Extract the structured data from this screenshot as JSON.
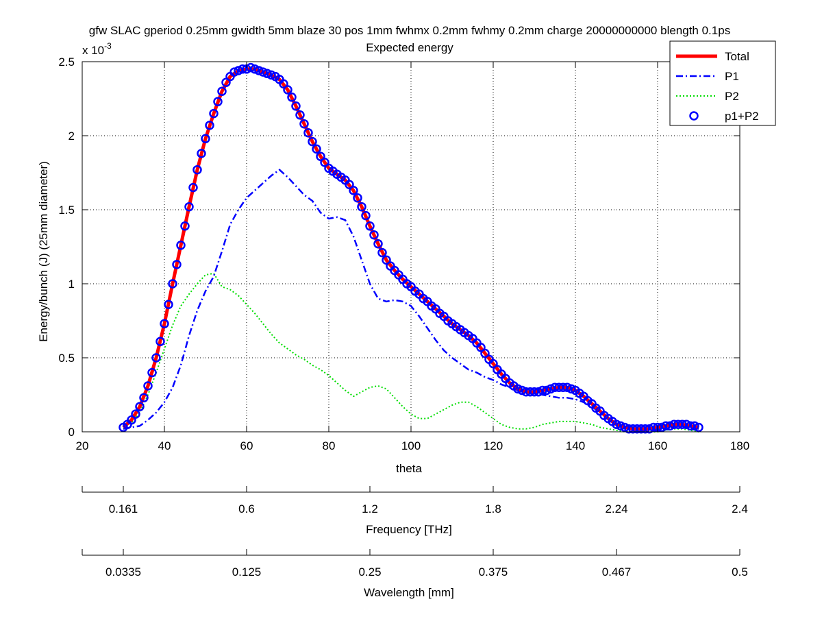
{
  "chart_data": {
    "type": "line",
    "title": "gfw SLAC gperiod 0.25mm gwidth 5mm blaze 30 pos 1mm fwhmx 0.2mm fwhmy 0.2mm charge 20000000000 blength 0.1ps",
    "subtitle": "Expected energy",
    "xlabel": "theta",
    "ylabel": "Energy/bunch (J)  (25mm diameter)",
    "y_exponent_label": "x 10",
    "y_exponent_power": "-3",
    "xlim": [
      20,
      180
    ],
    "ylim": [
      0,
      0.0025
    ],
    "x_ticks": [
      20,
      40,
      60,
      80,
      100,
      120,
      140,
      160,
      180
    ],
    "x_tick_labels": [
      "20",
      "40",
      "60",
      "80",
      "100",
      "120",
      "140",
      "160",
      "180"
    ],
    "y_ticks": [
      0,
      0.0005,
      0.001,
      0.0015,
      0.002,
      0.0025
    ],
    "y_tick_labels": [
      "0",
      "0.5",
      "1",
      "1.5",
      "2",
      "2.5"
    ],
    "grid": true,
    "legend_position": "top-right",
    "series": [
      {
        "name": "Total",
        "color": "#ff0000",
        "style": "solid-thick",
        "x": [
          30,
          32,
          34,
          36,
          38,
          40,
          42,
          44,
          46,
          48,
          50,
          52,
          54,
          56,
          58,
          60,
          62,
          64,
          66,
          68,
          70,
          72,
          74,
          76,
          78,
          80,
          82,
          84,
          86,
          88,
          90,
          92,
          94,
          96,
          98,
          100,
          102,
          104,
          106,
          108,
          110,
          112,
          114,
          116,
          118,
          120,
          122,
          124,
          126,
          128,
          130,
          132,
          134,
          136,
          138,
          140,
          142,
          144,
          146,
          148,
          150,
          152,
          154,
          156,
          158,
          160,
          162,
          164,
          166,
          168,
          170
        ],
        "y": [
          3e-05,
          8e-05,
          0.00017,
          0.00031,
          0.0005,
          0.00073,
          0.001,
          0.00126,
          0.00152,
          0.00177,
          0.00198,
          0.00215,
          0.0023,
          0.0024,
          0.00244,
          0.00245,
          0.00245,
          0.00243,
          0.00241,
          0.00238,
          0.00231,
          0.0022,
          0.00208,
          0.00196,
          0.00186,
          0.00178,
          0.00174,
          0.0017,
          0.00163,
          0.00152,
          0.00139,
          0.00127,
          0.00116,
          0.00109,
          0.00103,
          0.00098,
          0.00093,
          0.00088,
          0.00083,
          0.00078,
          0.00073,
          0.00069,
          0.00065,
          0.0006,
          0.00053,
          0.00046,
          0.00039,
          0.00033,
          0.00029,
          0.00027,
          0.00027,
          0.00028,
          0.00029,
          0.0003,
          0.0003,
          0.00028,
          0.00024,
          0.00019,
          0.00014,
          9e-05,
          5e-05,
          3e-05,
          2e-05,
          2e-05,
          2e-05,
          3e-05,
          4e-05,
          5e-05,
          5e-05,
          4e-05,
          3e-05
        ]
      },
      {
        "name": "P1",
        "color": "#0000ff",
        "style": "dash-dot",
        "x": [
          30,
          32,
          34,
          36,
          38,
          40,
          42,
          44,
          46,
          48,
          50,
          52,
          54,
          56,
          58,
          60,
          62,
          64,
          66,
          68,
          70,
          72,
          74,
          76,
          78,
          80,
          82,
          84,
          86,
          88,
          90,
          92,
          94,
          96,
          98,
          100,
          102,
          104,
          106,
          108,
          110,
          112,
          114,
          116,
          118,
          120,
          122,
          124,
          126,
          128,
          130,
          132,
          134,
          136,
          138,
          140,
          142,
          144,
          146,
          148,
          150,
          152,
          154,
          156,
          158,
          160,
          162,
          164,
          166,
          168,
          170
        ],
        "y": [
          2e-05,
          3e-05,
          4e-05,
          8e-05,
          0.00013,
          0.0002,
          0.0003,
          0.00045,
          0.00065,
          0.00082,
          0.00095,
          0.00105,
          0.00122,
          0.0014,
          0.0015,
          0.00158,
          0.00163,
          0.00168,
          0.00173,
          0.00177,
          0.00172,
          0.00166,
          0.0016,
          0.00156,
          0.00148,
          0.00144,
          0.00145,
          0.00143,
          0.00132,
          0.00116,
          0.001,
          0.0009,
          0.00088,
          0.00089,
          0.00088,
          0.00085,
          0.00078,
          0.0007,
          0.00062,
          0.00055,
          0.0005,
          0.00046,
          0.00042,
          0.0004,
          0.00037,
          0.00035,
          0.00032,
          0.0003,
          0.00028,
          0.00027,
          0.00026,
          0.00025,
          0.00024,
          0.00023,
          0.00023,
          0.00022,
          0.0002,
          0.00017,
          0.00013,
          9e-05,
          5e-05,
          3e-05,
          2e-05,
          1e-05,
          2e-05,
          2e-05,
          3e-05,
          4e-05,
          4e-05,
          3e-05,
          2e-05
        ]
      },
      {
        "name": "P2",
        "color": "#00dd00",
        "style": "dotted",
        "x": [
          30,
          32,
          34,
          36,
          38,
          40,
          42,
          44,
          46,
          48,
          50,
          52,
          54,
          56,
          58,
          60,
          62,
          64,
          66,
          68,
          70,
          72,
          74,
          76,
          78,
          80,
          82,
          84,
          86,
          88,
          90,
          92,
          94,
          96,
          98,
          100,
          102,
          104,
          106,
          108,
          110,
          112,
          114,
          116,
          118,
          120,
          122,
          124,
          126,
          128,
          130,
          132,
          134,
          136,
          138,
          140,
          142,
          144,
          146,
          148,
          150,
          152,
          154,
          156,
          158,
          160,
          162,
          164,
          166,
          168,
          170
        ],
        "y": [
          3e-05,
          6e-05,
          0.00013,
          0.00025,
          0.0004,
          0.00056,
          0.00072,
          0.00085,
          0.00093,
          0.001,
          0.00106,
          0.00107,
          0.00098,
          0.00096,
          0.00092,
          0.00086,
          0.0008,
          0.00073,
          0.00066,
          0.0006,
          0.00056,
          0.00052,
          0.00049,
          0.00045,
          0.00042,
          0.00038,
          0.00033,
          0.00028,
          0.00024,
          0.00027,
          0.0003,
          0.00031,
          0.00029,
          0.00023,
          0.00017,
          0.00012,
          9e-05,
          9e-05,
          0.00012,
          0.00015,
          0.00018,
          0.0002,
          0.0002,
          0.00017,
          0.00013,
          9e-05,
          5e-05,
          3e-05,
          2e-05,
          2e-05,
          3e-05,
          5e-05,
          6e-05,
          7e-05,
          7e-05,
          7e-05,
          6e-05,
          5e-05,
          3e-05,
          2e-05,
          1e-05,
          0,
          0,
          0,
          0,
          0,
          1e-05,
          2e-05,
          2e-05,
          1e-05,
          0
        ]
      },
      {
        "name": "p1+P2",
        "color": "#0000ff",
        "style": "circle-markers",
        "x": [
          30,
          31,
          32,
          33,
          34,
          35,
          36,
          37,
          38,
          39,
          40,
          41,
          42,
          43,
          44,
          45,
          46,
          47,
          48,
          49,
          50,
          51,
          52,
          53,
          54,
          55,
          56,
          57,
          58,
          59,
          60,
          61,
          62,
          63,
          64,
          65,
          66,
          67,
          68,
          69,
          70,
          71,
          72,
          73,
          74,
          75,
          76,
          77,
          78,
          79,
          80,
          81,
          82,
          83,
          84,
          85,
          86,
          87,
          88,
          89,
          90,
          91,
          92,
          93,
          94,
          95,
          96,
          97,
          98,
          99,
          100,
          101,
          102,
          103,
          104,
          105,
          106,
          107,
          108,
          109,
          110,
          111,
          112,
          113,
          114,
          115,
          116,
          117,
          118,
          119,
          120,
          121,
          122,
          123,
          124,
          125,
          126,
          127,
          128,
          129,
          130,
          131,
          132,
          133,
          134,
          135,
          136,
          137,
          138,
          139,
          140,
          141,
          142,
          143,
          144,
          145,
          146,
          147,
          148,
          149,
          150,
          151,
          152,
          153,
          154,
          155,
          156,
          157,
          158,
          159,
          160,
          161,
          162,
          163,
          164,
          165,
          166,
          167,
          168,
          169,
          170
        ],
        "y": [
          3e-05,
          5e-05,
          8e-05,
          0.00012,
          0.00017,
          0.00023,
          0.00031,
          0.0004,
          0.0005,
          0.00061,
          0.00073,
          0.00086,
          0.001,
          0.00113,
          0.00126,
          0.00139,
          0.00152,
          0.00165,
          0.00177,
          0.00188,
          0.00198,
          0.00207,
          0.00215,
          0.00223,
          0.0023,
          0.00236,
          0.0024,
          0.00243,
          0.00244,
          0.00245,
          0.00245,
          0.00246,
          0.00245,
          0.00244,
          0.00243,
          0.00242,
          0.00241,
          0.0024,
          0.00238,
          0.00235,
          0.00231,
          0.00226,
          0.0022,
          0.00214,
          0.00208,
          0.00202,
          0.00196,
          0.00191,
          0.00186,
          0.00182,
          0.00178,
          0.00176,
          0.00174,
          0.00172,
          0.0017,
          0.00167,
          0.00163,
          0.00158,
          0.00152,
          0.00146,
          0.00139,
          0.00133,
          0.00127,
          0.00121,
          0.00116,
          0.00112,
          0.00109,
          0.00106,
          0.00103,
          0.001,
          0.00098,
          0.00095,
          0.00093,
          0.0009,
          0.00088,
          0.00085,
          0.00083,
          0.0008,
          0.00078,
          0.00075,
          0.00073,
          0.00071,
          0.00069,
          0.00067,
          0.00065,
          0.00063,
          0.0006,
          0.00057,
          0.00053,
          0.00049,
          0.00046,
          0.00042,
          0.00039,
          0.00036,
          0.00033,
          0.00031,
          0.00029,
          0.00028,
          0.00027,
          0.00027,
          0.00027,
          0.00027,
          0.00028,
          0.00028,
          0.00029,
          0.0003,
          0.0003,
          0.0003,
          0.0003,
          0.00029,
          0.00028,
          0.00026,
          0.00024,
          0.00021,
          0.00019,
          0.00016,
          0.00014,
          0.00011,
          9e-05,
          7e-05,
          5e-05,
          4e-05,
          3e-05,
          2e-05,
          2e-05,
          2e-05,
          2e-05,
          2e-05,
          2e-05,
          3e-05,
          3e-05,
          3e-05,
          4e-05,
          4e-05,
          5e-05,
          5e-05,
          5e-05,
          5e-05,
          4e-05,
          4e-05,
          3e-05
        ]
      }
    ],
    "secondary_axes": [
      {
        "label": "Frequency [THz]",
        "tick_positions_theta": [
          30,
          60,
          90,
          120,
          150,
          180
        ],
        "tick_labels": [
          "0.161",
          "0.6",
          "1.2",
          "1.8",
          "2.24",
          "2.4"
        ]
      },
      {
        "label": "Wavelength [mm]",
        "tick_positions_theta": [
          30,
          60,
          90,
          120,
          150,
          180
        ],
        "tick_labels": [
          "0.0335",
          "0.125",
          "0.25",
          "0.375",
          "0.467",
          "0.5"
        ]
      }
    ]
  }
}
